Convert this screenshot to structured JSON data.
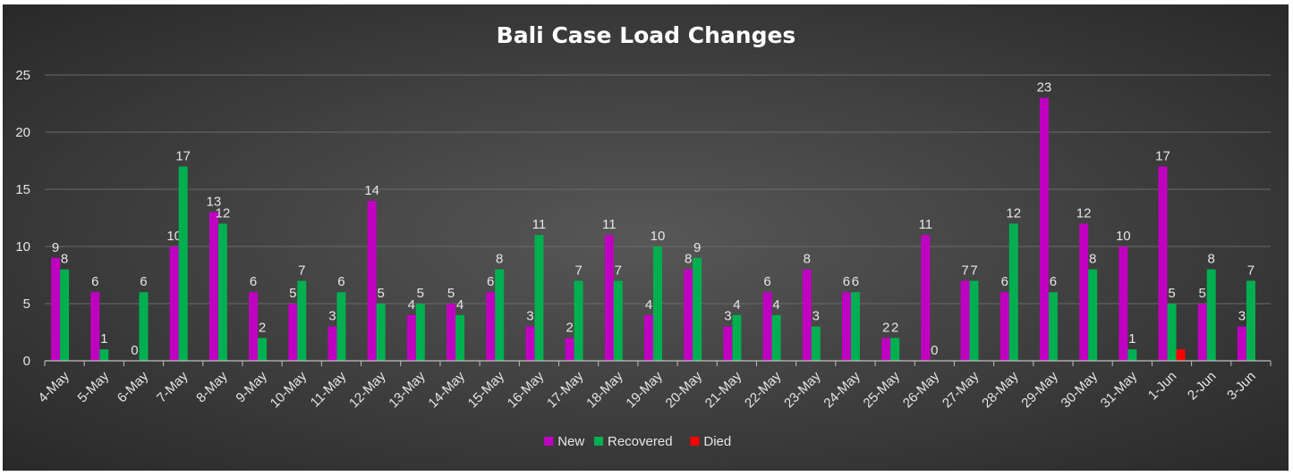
{
  "chart_data": {
    "type": "bar",
    "title": "Bali Case Load Changes",
    "xlabel": "",
    "ylabel": "",
    "ylim": [
      0,
      25
    ],
    "yticks": [
      0,
      5,
      10,
      15,
      20,
      25
    ],
    "grid": true,
    "legend_position": "bottom",
    "categories": [
      "4-May",
      "5-May",
      "6-May",
      "7-May",
      "8-May",
      "9-May",
      "10-May",
      "11-May",
      "12-May",
      "13-May",
      "14-May",
      "15-May",
      "16-May",
      "17-May",
      "18-May",
      "19-May",
      "20-May",
      "21-May",
      "22-May",
      "23-May",
      "24-May",
      "25-May",
      "26-May",
      "27-May",
      "28-May",
      "29-May",
      "30-May",
      "31-May",
      "1-Jun",
      "2-Jun",
      "3-Jun"
    ],
    "series": [
      {
        "name": "New",
        "color": "#c000c0",
        "values": [
          9,
          6,
          0,
          10,
          13,
          6,
          5,
          3,
          14,
          4,
          5,
          6,
          3,
          2,
          11,
          4,
          8,
          3,
          6,
          8,
          6,
          2,
          11,
          7,
          6,
          23,
          12,
          10,
          17,
          5,
          3
        ]
      },
      {
        "name": "Recovered",
        "color": "#00b050",
        "values": [
          8,
          1,
          6,
          17,
          12,
          2,
          7,
          6,
          5,
          5,
          4,
          8,
          11,
          7,
          7,
          10,
          9,
          4,
          4,
          3,
          6,
          2,
          0,
          7,
          12,
          6,
          8,
          1,
          5,
          8,
          7
        ]
      },
      {
        "name": "Died",
        "color": "#ff0000",
        "values": [
          0,
          0,
          0,
          0,
          0,
          0,
          0,
          0,
          0,
          0,
          0,
          0,
          0,
          0,
          0,
          0,
          0,
          0,
          0,
          0,
          0,
          0,
          0,
          0,
          0,
          0,
          0,
          0,
          1,
          0,
          0
        ]
      }
    ],
    "colors": {
      "background_center": "#575757",
      "background_edge": "#262626",
      "gridline": "#6a6a6a",
      "text": "#e6e6e6"
    }
  }
}
